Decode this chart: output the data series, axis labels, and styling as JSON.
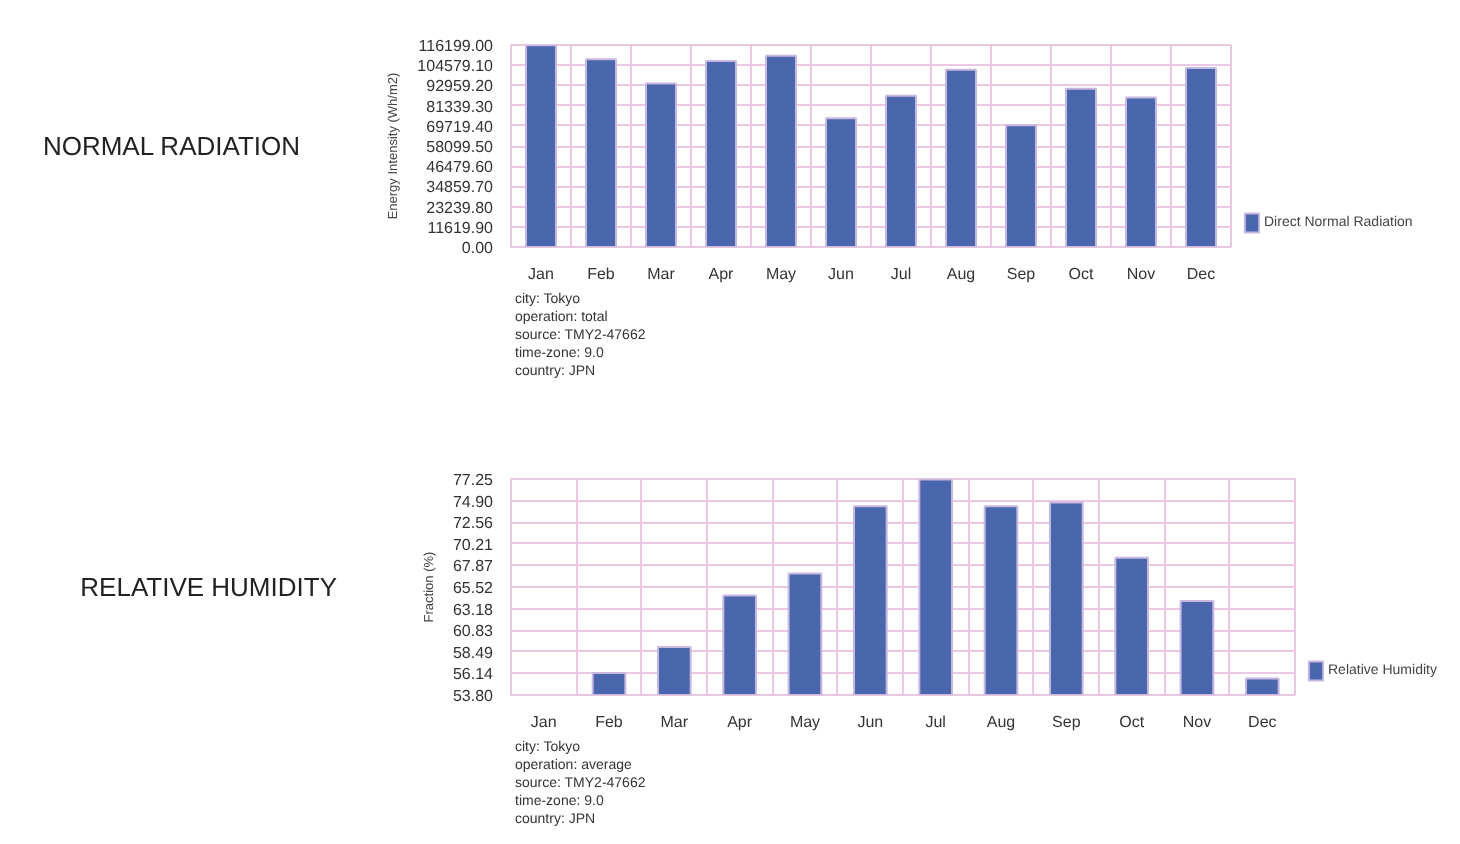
{
  "chart_data": [
    {
      "type": "bar",
      "title": "NORMAL RADIATION",
      "ylabel": "Energy Intensity (Wh/m2)",
      "categories": [
        "Jan",
        "Feb",
        "Mar",
        "Apr",
        "May",
        "Jun",
        "Jul",
        "Aug",
        "Sep",
        "Oct",
        "Nov",
        "Dec"
      ],
      "series": [
        {
          "name": "Direct Normal Radiation",
          "color": "#4a66ac",
          "values": [
            116000,
            108000,
            94000,
            107000,
            110000,
            74000,
            87000,
            102000,
            70000,
            91000,
            86000,
            103000
          ]
        }
      ],
      "ylim": [
        0,
        116199
      ],
      "yticks": [
        {
          "value": 0,
          "label": "0.00"
        },
        {
          "value": 11619.9,
          "label": "11619.90"
        },
        {
          "value": 23239.8,
          "label": "23239.80"
        },
        {
          "value": 34859.7,
          "label": "34859.70"
        },
        {
          "value": 46479.6,
          "label": "46479.60"
        },
        {
          "value": 58099.5,
          "label": "58099.50"
        },
        {
          "value": 69719.4,
          "label": "69719.40"
        },
        {
          "value": 81339.3,
          "label": "81339.30"
        },
        {
          "value": 92959.2,
          "label": "92959.20"
        },
        {
          "value": 104579.1,
          "label": "104579.10"
        },
        {
          "value": 116199,
          "label": "116199.00"
        }
      ],
      "grid": true,
      "legend": "right",
      "annotations": [
        "city: Tokyo",
        "operation: total",
        "source: TMY2-47662",
        "time-zone: 9.0",
        "country: JPN"
      ]
    },
    {
      "type": "bar",
      "title": "RELATIVE HUMIDITY",
      "ylabel": "Fraction (%)",
      "categories": [
        "Jan",
        "Feb",
        "Mar",
        "Apr",
        "May",
        "Jun",
        "Jul",
        "Aug",
        "Sep",
        "Oct",
        "Nov",
        "Dec"
      ],
      "series": [
        {
          "name": "Relative Humidity",
          "color": "#4a66ac",
          "values": [
            null,
            56.2,
            59.0,
            64.6,
            67.0,
            74.3,
            77.2,
            74.3,
            74.7,
            68.7,
            64.0,
            55.6
          ]
        }
      ],
      "ylim": [
        53.8,
        77.25
      ],
      "yticks": [
        {
          "value": 53.8,
          "label": "53.80"
        },
        56.14,
        58.49,
        60.83,
        63.18,
        65.52,
        67.87,
        70.21,
        72.56,
        {
          "value": 74.9,
          "label": "74.90"
        },
        77.25
      ],
      "grid": true,
      "legend": "right",
      "annotations": [
        "city: Tokyo",
        "operation: average",
        "source: TMY2-47662",
        "time-zone: 9.0",
        "country: JPN"
      ]
    }
  ]
}
